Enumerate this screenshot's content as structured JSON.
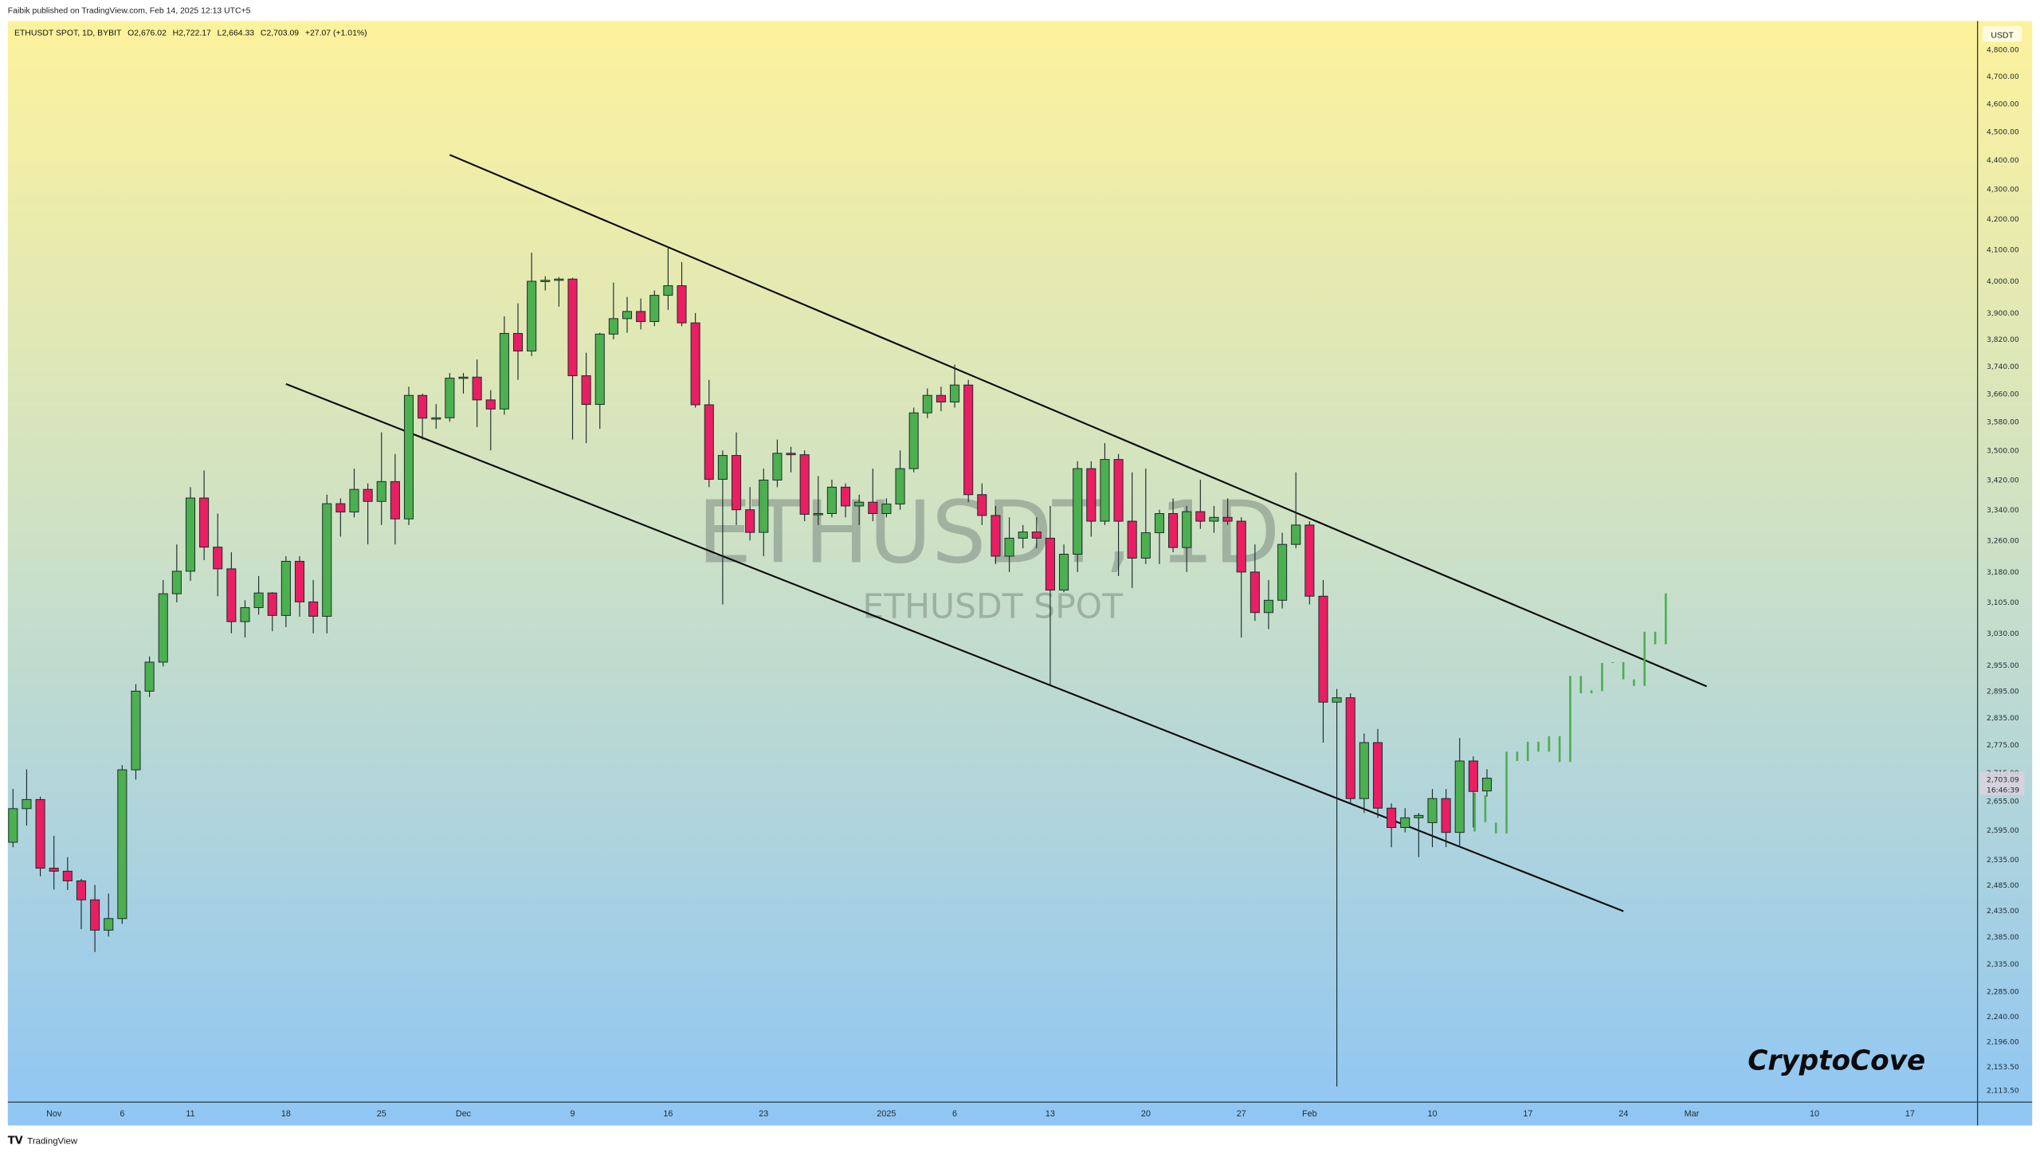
{
  "publisher_line": "Faibik published on TradingView.com, Feb 14, 2025 12:13 UTC+5",
  "legend": {
    "symbol": "ETHUSDT SPOT, 1D, BYBIT",
    "open": "O2,676.02",
    "high": "H2,722.17",
    "low": "L2,664.33",
    "close": "C2,703.09",
    "change": "+27.07 (+1.01%)"
  },
  "watermark": {
    "main": "ETHUSDT, 1D",
    "sub": "ETHUSDT SPOT"
  },
  "signature": "CryptoCove",
  "footer_logo": "TradingView",
  "currency_label": "USDT",
  "last_price": {
    "price": "2,703.09",
    "countdown": "16:46:39"
  },
  "colors": {
    "up": "#4caf50",
    "down": "#e91e63",
    "border": "#1b2b2b",
    "projection": "#4caf50",
    "bg_top": "#fdf29c",
    "bg_bottom": "#8fc6f4"
  },
  "chart_data": {
    "type": "candlestick",
    "title": "ETHUSDT SPOT, 1D, BYBIT",
    "scale": "log",
    "ylim": [
      2113.5,
      4800
    ],
    "start_date": "2024-10-29",
    "y_ticks": [
      "4,800.00",
      "4,700.00",
      "4,600.00",
      "4,500.00",
      "4,400.00",
      "4,300.00",
      "4,200.00",
      "4,100.00",
      "4,000.00",
      "3,900.00",
      "3,820.00",
      "3,740.00",
      "3,660.00",
      "3,580.00",
      "3,500.00",
      "3,420.00",
      "3,340.00",
      "3,260.00",
      "3,180.00",
      "3,105.00",
      "3,030.00",
      "2,955.00",
      "2,895.00",
      "2,835.00",
      "2,775.00",
      "2,715.00",
      "2,655.00",
      "2,595.00",
      "2,535.00",
      "2,485.00",
      "2,435.00",
      "2,385.00",
      "2,335.00",
      "2,285.00",
      "2,240.00",
      "2,196.00",
      "2,153.50",
      "2,113.50"
    ],
    "x_ticks": [
      {
        "label": "Nov",
        "day": 3
      },
      {
        "label": "6",
        "day": 8
      },
      {
        "label": "11",
        "day": 13
      },
      {
        "label": "18",
        "day": 20
      },
      {
        "label": "25",
        "day": 27
      },
      {
        "label": "Dec",
        "day": 33
      },
      {
        "label": "9",
        "day": 41
      },
      {
        "label": "16",
        "day": 48
      },
      {
        "label": "23",
        "day": 55
      },
      {
        "label": "2025",
        "day": 64
      },
      {
        "label": "6",
        "day": 69
      },
      {
        "label": "13",
        "day": 76
      },
      {
        "label": "20",
        "day": 83
      },
      {
        "label": "27",
        "day": 90
      },
      {
        "label": "Feb",
        "day": 95
      },
      {
        "label": "10",
        "day": 104
      },
      {
        "label": "17",
        "day": 111
      },
      {
        "label": "24",
        "day": 118
      },
      {
        "label": "Mar",
        "day": 123
      },
      {
        "label": "10",
        "day": 132
      },
      {
        "label": "17",
        "day": 139
      }
    ],
    "ohlc": [
      [
        2570,
        2680,
        2560,
        2639
      ],
      [
        2639,
        2722,
        2604,
        2658
      ],
      [
        2658,
        2664,
        2502,
        2518
      ],
      [
        2518,
        2583,
        2476,
        2512
      ],
      [
        2512,
        2540,
        2475,
        2493
      ],
      [
        2493,
        2497,
        2400,
        2456
      ],
      [
        2456,
        2485,
        2357,
        2398
      ],
      [
        2398,
        2468,
        2386,
        2420
      ],
      [
        2420,
        2731,
        2410,
        2721
      ],
      [
        2721,
        2911,
        2700,
        2895
      ],
      [
        2895,
        2975,
        2882,
        2962
      ],
      [
        2962,
        3160,
        2952,
        3126
      ],
      [
        3126,
        3250,
        3105,
        3182
      ],
      [
        3182,
        3400,
        3158,
        3371
      ],
      [
        3371,
        3445,
        3210,
        3243
      ],
      [
        3243,
        3330,
        3120,
        3188
      ],
      [
        3188,
        3230,
        3030,
        3058
      ],
      [
        3058,
        3110,
        3020,
        3092
      ],
      [
        3092,
        3170,
        3075,
        3128
      ],
      [
        3128,
        3130,
        3035,
        3073
      ],
      [
        3073,
        3220,
        3045,
        3207
      ],
      [
        3207,
        3220,
        3070,
        3106
      ],
      [
        3106,
        3160,
        3030,
        3071
      ],
      [
        3071,
        3380,
        3030,
        3356
      ],
      [
        3356,
        3370,
        3270,
        3334
      ],
      [
        3334,
        3450,
        3320,
        3394
      ],
      [
        3394,
        3410,
        3250,
        3362
      ],
      [
        3362,
        3550,
        3300,
        3415
      ],
      [
        3415,
        3490,
        3250,
        3316
      ],
      [
        3316,
        3680,
        3300,
        3655
      ],
      [
        3655,
        3660,
        3530,
        3590
      ],
      [
        3590,
        3630,
        3560,
        3591
      ],
      [
        3591,
        3720,
        3580,
        3705
      ],
      [
        3705,
        3720,
        3660,
        3708
      ],
      [
        3708,
        3760,
        3565,
        3642
      ],
      [
        3642,
        3670,
        3500,
        3616
      ],
      [
        3616,
        3890,
        3600,
        3838
      ],
      [
        3838,
        3930,
        3700,
        3785
      ],
      [
        3785,
        4090,
        3770,
        3999
      ],
      [
        3999,
        4015,
        3970,
        4002
      ],
      [
        4002,
        4012,
        3920,
        4006
      ],
      [
        4006,
        4010,
        3530,
        3712
      ],
      [
        3712,
        3780,
        3520,
        3629
      ],
      [
        3629,
        3840,
        3560,
        3836
      ],
      [
        3836,
        3995,
        3820,
        3883
      ],
      [
        3883,
        3950,
        3840,
        3905
      ],
      [
        3905,
        3945,
        3850,
        3874
      ],
      [
        3874,
        3970,
        3860,
        3955
      ],
      [
        3955,
        4110,
        3910,
        3985
      ],
      [
        3985,
        4060,
        3860,
        3870
      ],
      [
        3870,
        3900,
        3620,
        3628
      ],
      [
        3628,
        3700,
        3400,
        3421
      ],
      [
        3421,
        3500,
        3100,
        3486
      ],
      [
        3486,
        3550,
        3300,
        3340
      ],
      [
        3340,
        3400,
        3260,
        3281
      ],
      [
        3281,
        3450,
        3220,
        3419
      ],
      [
        3419,
        3530,
        3400,
        3492
      ],
      [
        3492,
        3510,
        3440,
        3488
      ],
      [
        3488,
        3500,
        3310,
        3328
      ],
      [
        3328,
        3430,
        3300,
        3330
      ],
      [
        3330,
        3420,
        3320,
        3400
      ],
      [
        3400,
        3410,
        3320,
        3350
      ],
      [
        3350,
        3380,
        3300,
        3360
      ],
      [
        3360,
        3450,
        3310,
        3330
      ],
      [
        3330,
        3370,
        3320,
        3355
      ],
      [
        3355,
        3500,
        3340,
        3450
      ],
      [
        3450,
        3620,
        3440,
        3605
      ],
      [
        3605,
        3675,
        3590,
        3655
      ],
      [
        3655,
        3680,
        3610,
        3636
      ],
      [
        3636,
        3745,
        3620,
        3685
      ],
      [
        3685,
        3700,
        3360,
        3380
      ],
      [
        3380,
        3410,
        3300,
        3325
      ],
      [
        3325,
        3350,
        3200,
        3220
      ],
      [
        3220,
        3320,
        3180,
        3266
      ],
      [
        3266,
        3300,
        3240,
        3282
      ],
      [
        3282,
        3320,
        3240,
        3266
      ],
      [
        3266,
        3350,
        2910,
        3135
      ],
      [
        3135,
        3250,
        3130,
        3225
      ],
      [
        3225,
        3470,
        3180,
        3450
      ],
      [
        3450,
        3470,
        3270,
        3310
      ],
      [
        3310,
        3520,
        3300,
        3475
      ],
      [
        3475,
        3490,
        3170,
        3310
      ],
      [
        3310,
        3440,
        3140,
        3215
      ],
      [
        3215,
        3450,
        3200,
        3280
      ],
      [
        3280,
        3340,
        3200,
        3330
      ],
      [
        3330,
        3370,
        3230,
        3242
      ],
      [
        3242,
        3350,
        3180,
        3335
      ],
      [
        3335,
        3420,
        3290,
        3310
      ],
      [
        3310,
        3350,
        3280,
        3320
      ],
      [
        3320,
        3370,
        3300,
        3310
      ],
      [
        3310,
        3320,
        3020,
        3180
      ],
      [
        3180,
        3250,
        3060,
        3080
      ],
      [
        3080,
        3160,
        3040,
        3110
      ],
      [
        3110,
        3280,
        3090,
        3250
      ],
      [
        3250,
        3440,
        3240,
        3300
      ],
      [
        3300,
        3310,
        3100,
        3120
      ],
      [
        3120,
        3160,
        2780,
        2870
      ],
      [
        2870,
        2900,
        2120,
        2880
      ],
      [
        2880,
        2890,
        2650,
        2660
      ],
      [
        2660,
        2800,
        2630,
        2780
      ],
      [
        2780,
        2810,
        2620,
        2640
      ],
      [
        2640,
        2650,
        2560,
        2600
      ],
      [
        2600,
        2640,
        2590,
        2620
      ],
      [
        2620,
        2630,
        2540,
        2625
      ],
      [
        2610,
        2680,
        2560,
        2660
      ],
      [
        2660,
        2680,
        2560,
        2590
      ],
      [
        2590,
        2790,
        2560,
        2740
      ],
      [
        2740,
        2750,
        2600,
        2675
      ],
      [
        2676.02,
        2722.17,
        2664.33,
        2703.09
      ]
    ],
    "projection_bars": [
      [
        2592,
        2672
      ],
      [
        2611,
        2667
      ],
      [
        2588,
        2610
      ],
      [
        2588,
        2760
      ],
      [
        2740,
        2760
      ],
      [
        2740,
        2782
      ],
      [
        2760,
        2782
      ],
      [
        2760,
        2794
      ],
      [
        2738,
        2794
      ],
      [
        2738,
        2930
      ],
      [
        2890,
        2930
      ],
      [
        2890,
        2897
      ],
      [
        2895,
        2960
      ],
      [
        2960,
        2962
      ],
      [
        2922,
        2962
      ],
      [
        2907,
        2922
      ],
      [
        2907,
        3034
      ],
      [
        3004,
        3034
      ],
      [
        3004,
        3127
      ]
    ],
    "trendlines": [
      {
        "name": "upper-channel",
        "start": {
          "day": 32,
          "price": 4418
        },
        "end": {
          "day": 124.1,
          "price": 2906
        }
      },
      {
        "name": "lower-channel",
        "start": {
          "day": 20,
          "price": 3688
        },
        "end": {
          "day": 118,
          "price": 2434
        }
      }
    ]
  }
}
